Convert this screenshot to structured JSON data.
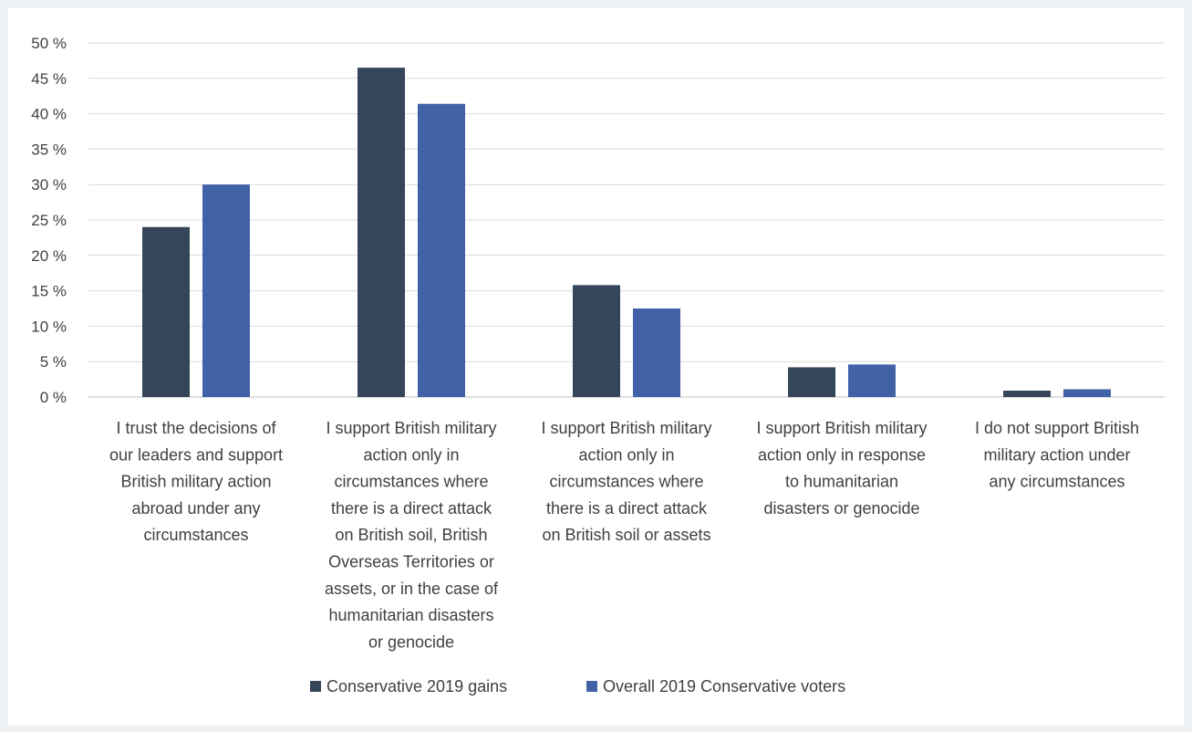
{
  "chart_data": {
    "type": "bar",
    "title": "",
    "xlabel": "",
    "ylabel": "",
    "ylim": [
      0,
      50
    ],
    "y_ticks": [
      "0 %",
      "5 %",
      "10 %",
      "15 %",
      "20 %",
      "25 %",
      "30 %",
      "35 %",
      "40 %",
      "45 %",
      "50 %"
    ],
    "y_tick_values": [
      0,
      5,
      10,
      15,
      20,
      25,
      30,
      35,
      40,
      45,
      50
    ],
    "grid": true,
    "legend_position": "bottom",
    "categories": [
      [
        "I trust the decisions of",
        "our leaders and support",
        "British military action",
        "abroad under any",
        "circumstances"
      ],
      [
        "I support British military",
        "action only in",
        "circumstances where",
        "there is a direct attack",
        "on British soil, British",
        "Overseas Territories or",
        "assets, or in the case of",
        "humanitarian disasters",
        "or genocide"
      ],
      [
        "I support British military",
        "action only in",
        "circumstances where",
        "there is a direct attack",
        "on British soil or assets"
      ],
      [
        "I support British military",
        "action only in response",
        "to humanitarian",
        "disasters or genocide"
      ],
      [
        "I do not support British",
        "military action under",
        "any circumstances"
      ]
    ],
    "series": [
      {
        "name": "Conservative 2019 gains",
        "color": "#36465a",
        "values": [
          24,
          46.5,
          15.8,
          4.2,
          0.9
        ]
      },
      {
        "name": "Overall 2019 Conservative voters",
        "color": "#4262a8",
        "values": [
          30,
          41.4,
          12.5,
          4.6,
          1.1
        ]
      }
    ]
  }
}
